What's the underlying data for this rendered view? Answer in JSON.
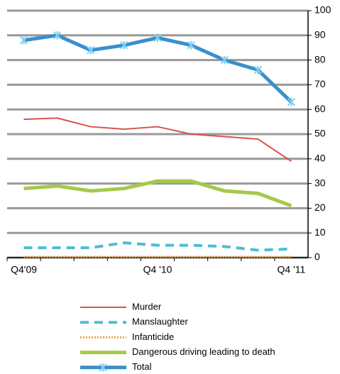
{
  "chart_data": {
    "type": "line",
    "categories": [
      "Q4'09",
      null,
      null,
      null,
      "Q4 '10",
      null,
      null,
      null,
      "Q4 '11"
    ],
    "series": [
      {
        "name": "Murder",
        "color": "#d9534a",
        "width": 2,
        "dash": "none",
        "values": [
          56,
          56.5,
          53,
          52,
          53,
          50,
          49,
          48,
          39
        ]
      },
      {
        "name": "Manslaughter",
        "color": "#4bbfd0",
        "width": 4,
        "dash": "12 8",
        "values": [
          4,
          4,
          4,
          6,
          5,
          5,
          4.5,
          3,
          3.5
        ]
      },
      {
        "name": "Infanticide",
        "color": "#f0a040",
        "width": 3,
        "dash": "2 2",
        "values": [
          0.3,
          0.3,
          0.3,
          0.3,
          0.3,
          0.3,
          0.3,
          0.3,
          0.3
        ]
      },
      {
        "name": "Dangerous driving leading to death",
        "color": "#a6c94a",
        "width": 5,
        "dash": "none",
        "values": [
          28,
          29,
          27,
          28,
          31,
          31,
          27,
          26,
          21
        ]
      },
      {
        "name": "Total",
        "color": "#3a8fcc",
        "width": 5,
        "dash": "none",
        "marker": "star",
        "values": [
          88,
          90,
          84,
          86,
          89,
          86,
          80,
          76,
          63
        ]
      }
    ],
    "ylim": [
      0,
      100
    ],
    "yticks": [
      0,
      10,
      20,
      30,
      40,
      50,
      60,
      70,
      80,
      90,
      100
    ],
    "grid": true,
    "y_axis_side": "right",
    "legend": "bottom"
  }
}
